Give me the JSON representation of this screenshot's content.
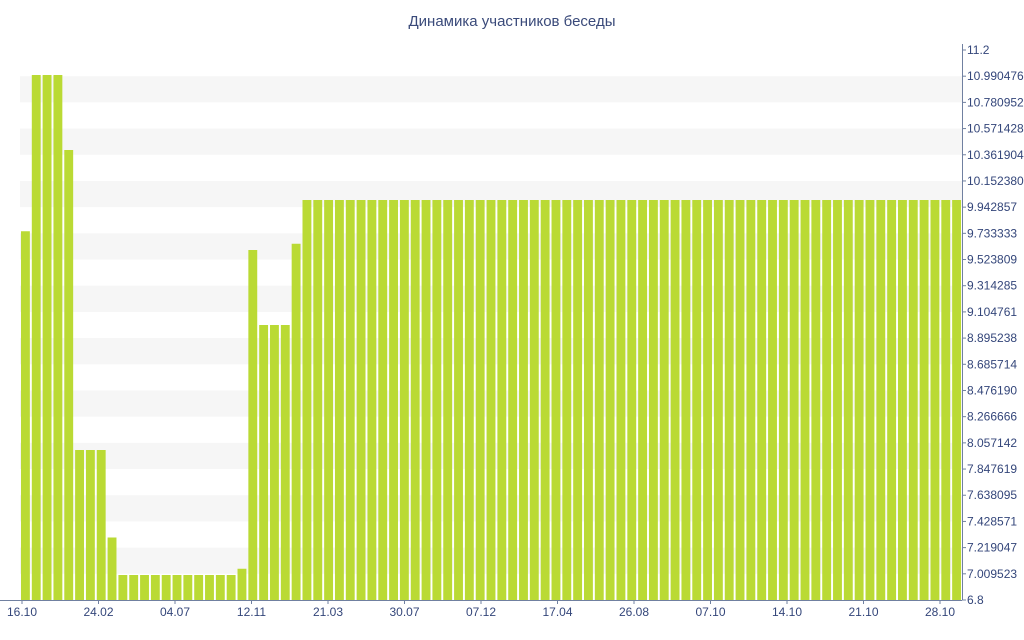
{
  "chart_data": {
    "type": "bar",
    "title": "Динамика участников беседы",
    "xlabel": "",
    "ylabel": "",
    "ylim": [
      6.8,
      11.2
    ],
    "grid": "horizontal-bands",
    "bar_color": "#bada34",
    "band_color": "#f6f6f6",
    "axis_color": "#7080a0",
    "x_tick_labels": [
      "16.10",
      "24.02",
      "04.07",
      "12.11",
      "21.03",
      "30.07",
      "07.12",
      "17.04",
      "26.08",
      "07.10",
      "14.10",
      "21.10",
      "28.10"
    ],
    "y_tick_labels": [
      "6.8",
      "7.009523",
      "7.219047",
      "7.428571",
      "7.638095",
      "7.847619",
      "8.057142",
      "8.266666",
      "8.476190",
      "8.685714",
      "8.895238",
      "9.104761",
      "9.314285",
      "9.523809",
      "9.733333",
      "9.942857",
      "10.152380",
      "10.361904",
      "10.571428",
      "10.780952",
      "10.990476",
      "11.2"
    ],
    "values": [
      9.75,
      11,
      11,
      11,
      10.4,
      8,
      8,
      8,
      7.3,
      7,
      7,
      7,
      7,
      7,
      7,
      7,
      7,
      7,
      7,
      7,
      7.05,
      9.6,
      9,
      9,
      9,
      9.65,
      10,
      10,
      10,
      10,
      10,
      10,
      10,
      10,
      10,
      10,
      10,
      10,
      10,
      10,
      10,
      10,
      10,
      10,
      10,
      10,
      10,
      10,
      10,
      10,
      10,
      10,
      10,
      10,
      10,
      10,
      10,
      10,
      10,
      10,
      10,
      10,
      10,
      10,
      10,
      10,
      10,
      10,
      10,
      10,
      10,
      10,
      10,
      10,
      10,
      10,
      10,
      10,
      10,
      10,
      10,
      10,
      10,
      10,
      10,
      10,
      10
    ]
  }
}
